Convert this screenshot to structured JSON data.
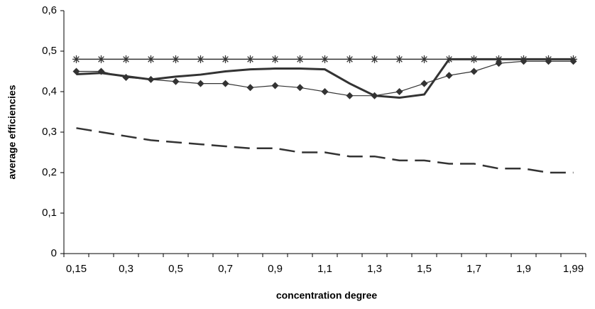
{
  "chart_data": {
    "type": "line",
    "x_label": "concentration degree",
    "y_label": "average efficiencies",
    "categories": [
      "0,15",
      null,
      "0,3",
      null,
      "0,5",
      null,
      "0,7",
      null,
      "0,9",
      null,
      "1,1",
      null,
      "1,3",
      null,
      "1,5",
      null,
      "1,7",
      null,
      "1,9",
      null,
      "1,99"
    ],
    "ylim": [
      0,
      0.6
    ],
    "yticks": [
      0,
      {
        "value": 0.1,
        "label": "0,1"
      },
      {
        "value": 0.2,
        "label": "0,2"
      },
      {
        "value": 0.3,
        "label": "0,3"
      },
      {
        "value": 0.4,
        "label": "0,4"
      },
      {
        "value": 0.5,
        "label": "0,5"
      },
      {
        "value": 0.6,
        "label": "0,6"
      }
    ],
    "series": [
      {
        "color": "#333333",
        "marker": "star",
        "line_width": 1.5,
        "dash": "none",
        "values": [
          0.48,
          0.48,
          0.48,
          0.48,
          0.48,
          0.48,
          0.48,
          0.48,
          0.48,
          0.48,
          0.48,
          0.48,
          0.48,
          0.48,
          0.48,
          0.48,
          0.48,
          0.48,
          0.48,
          0.48,
          0.48
        ]
      },
      {
        "color": "#333333",
        "marker": "diamond",
        "line_width": 1.2,
        "dash": "none",
        "values": [
          0.45,
          0.45,
          0.435,
          0.43,
          0.425,
          0.42,
          0.42,
          0.41,
          0.415,
          0.41,
          0.4,
          0.39,
          0.39,
          0.4,
          0.42,
          0.44,
          0.45,
          0.47,
          0.475,
          0.475,
          0.475
        ]
      },
      {
        "color": "#333333",
        "marker": "none",
        "line_width": 3,
        "dash": "none",
        "values": [
          0.443,
          0.446,
          0.438,
          0.43,
          0.437,
          0.442,
          0.45,
          0.455,
          0.457,
          0.457,
          0.455,
          0.42,
          0.39,
          0.385,
          0.393,
          0.48,
          0.48,
          0.48,
          0.48,
          0.48,
          0.48
        ]
      },
      {
        "color": "#333333",
        "marker": "none",
        "line_width": 2.5,
        "dash": "dashed",
        "values": [
          0.31,
          0.3,
          0.29,
          0.28,
          0.275,
          0.27,
          0.265,
          0.26,
          0.26,
          0.25,
          0.25,
          0.24,
          0.24,
          0.23,
          0.23,
          0.222,
          0.222,
          0.21,
          0.21,
          0.2,
          0.2
        ]
      }
    ]
  }
}
